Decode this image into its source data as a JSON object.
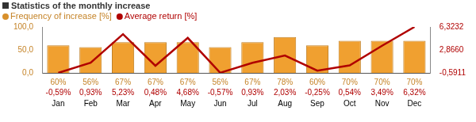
{
  "chart_data": {
    "type": "bar",
    "title": "Statistics of the monthly increase",
    "categories": [
      "Jan",
      "Feb",
      "Mar",
      "Apr",
      "May",
      "Jun",
      "Jul",
      "Aug",
      "Sep",
      "Oct",
      "Nov",
      "Dec"
    ],
    "series": [
      {
        "name": "Frequency of increase [%]",
        "type": "bar",
        "color": "#f0a030",
        "values": [
          60,
          56,
          67,
          67,
          67,
          56,
          67,
          78,
          60,
          70,
          70,
          70
        ],
        "value_labels": [
          "60%",
          "56%",
          "67%",
          "67%",
          "67%",
          "56%",
          "67%",
          "78%",
          "60%",
          "70%",
          "70%",
          "70%"
        ]
      },
      {
        "name": "Average return [%]",
        "type": "line",
        "color": "#b00000",
        "axis": "y2",
        "values": [
          -0.59,
          0.93,
          5.23,
          0.48,
          4.68,
          -0.57,
          0.93,
          2.03,
          -0.25,
          0.54,
          3.49,
          6.32
        ],
        "value_labels": [
          "-0,59%",
          "0,93%",
          "5,23%",
          "0,48%",
          "4,68%",
          "-0,57%",
          "0,93%",
          "2,03%",
          "-0,25%",
          "0,54%",
          "3,49%",
          "6,32%"
        ]
      }
    ],
    "ylim": [
      0,
      100
    ],
    "yticks": [
      {
        "value": 0,
        "label": "0,0"
      },
      {
        "value": 50,
        "label": "50,0"
      },
      {
        "value": 100,
        "label": "100,0"
      }
    ],
    "y2lim": [
      -0.5911,
      6.3232
    ],
    "y2ticks": [
      {
        "value": -0.5911,
        "label": "-0,5911"
      },
      {
        "value": 2.866,
        "label": "2,8660"
      },
      {
        "value": 6.3232,
        "label": "6,3232"
      }
    ],
    "grid": false,
    "legend": "top-left",
    "data_labels": true
  }
}
